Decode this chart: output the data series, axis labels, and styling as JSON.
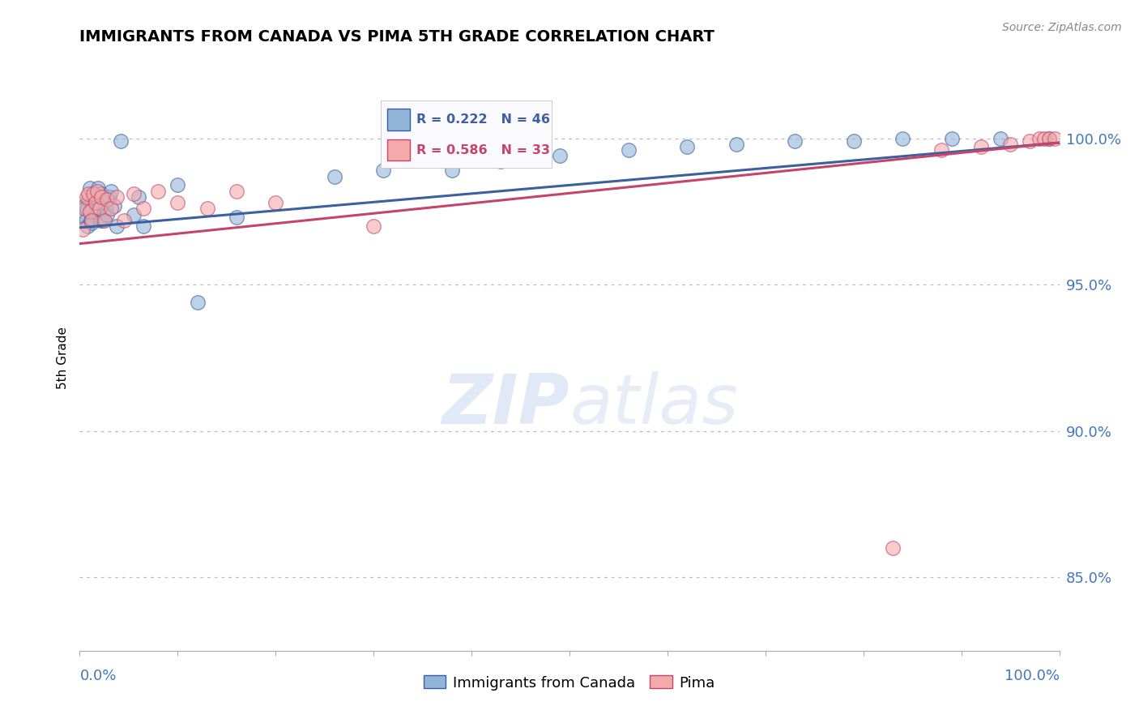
{
  "title": "IMMIGRANTS FROM CANADA VS PIMA 5TH GRADE CORRELATION CHART",
  "source_text": "Source: ZipAtlas.com",
  "ylabel": "5th Grade",
  "ytick_values": [
    0.85,
    0.9,
    0.95,
    1.0
  ],
  "ytick_labels": [
    "85.0%",
    "90.0%",
    "95.0%",
    "100.0%"
  ],
  "xlim": [
    0.0,
    1.0
  ],
  "ylim": [
    0.825,
    1.025
  ],
  "legend_blue_label": "Immigrants from Canada",
  "legend_pink_label": "Pima",
  "blue_r": "R = 0.222",
  "blue_n": "N = 46",
  "pink_r": "R = 0.586",
  "pink_n": "N = 33",
  "blue_color": "#92B4D8",
  "pink_color": "#F4AAAA",
  "trendline_blue": "#3B5FA0",
  "trendline_pink": "#C44569",
  "watermark": "ZIPatlas",
  "blue_x": [
    0.003,
    0.005,
    0.006,
    0.007,
    0.008,
    0.009,
    0.01,
    0.011,
    0.012,
    0.013,
    0.015,
    0.016,
    0.018,
    0.019,
    0.02,
    0.021,
    0.022,
    0.024,
    0.025,
    0.027,
    0.028,
    0.03,
    0.032,
    0.035,
    0.038,
    0.042,
    0.055,
    0.06,
    0.065,
    0.1,
    0.12,
    0.16,
    0.26,
    0.31,
    0.38,
    0.43,
    0.49,
    0.56,
    0.62,
    0.67,
    0.73,
    0.79,
    0.84,
    0.89,
    0.94,
    0.99
  ],
  "blue_y": [
    0.974,
    0.977,
    0.972,
    0.976,
    0.97,
    0.979,
    0.983,
    0.972,
    0.971,
    0.976,
    0.98,
    0.975,
    0.978,
    0.983,
    0.976,
    0.972,
    0.981,
    0.972,
    0.978,
    0.976,
    0.974,
    0.98,
    0.982,
    0.977,
    0.97,
    0.999,
    0.974,
    0.98,
    0.97,
    0.984,
    0.944,
    0.973,
    0.987,
    0.989,
    0.989,
    0.992,
    0.994,
    0.996,
    0.997,
    0.998,
    0.999,
    0.999,
    1.0,
    1.0,
    1.0,
    1.0
  ],
  "pink_x": [
    0.003,
    0.005,
    0.007,
    0.009,
    0.01,
    0.012,
    0.014,
    0.016,
    0.018,
    0.02,
    0.022,
    0.025,
    0.028,
    0.032,
    0.038,
    0.045,
    0.055,
    0.065,
    0.08,
    0.1,
    0.13,
    0.16,
    0.2,
    0.3,
    0.83,
    0.88,
    0.92,
    0.95,
    0.97,
    0.98,
    0.985,
    0.99,
    0.995
  ],
  "pink_y": [
    0.969,
    0.976,
    0.98,
    0.981,
    0.975,
    0.972,
    0.981,
    0.978,
    0.982,
    0.976,
    0.98,
    0.972,
    0.979,
    0.976,
    0.98,
    0.972,
    0.981,
    0.976,
    0.982,
    0.978,
    0.976,
    0.982,
    0.978,
    0.97,
    0.86,
    0.996,
    0.997,
    0.998,
    0.999,
    1.0,
    1.0,
    1.0,
    1.0
  ]
}
